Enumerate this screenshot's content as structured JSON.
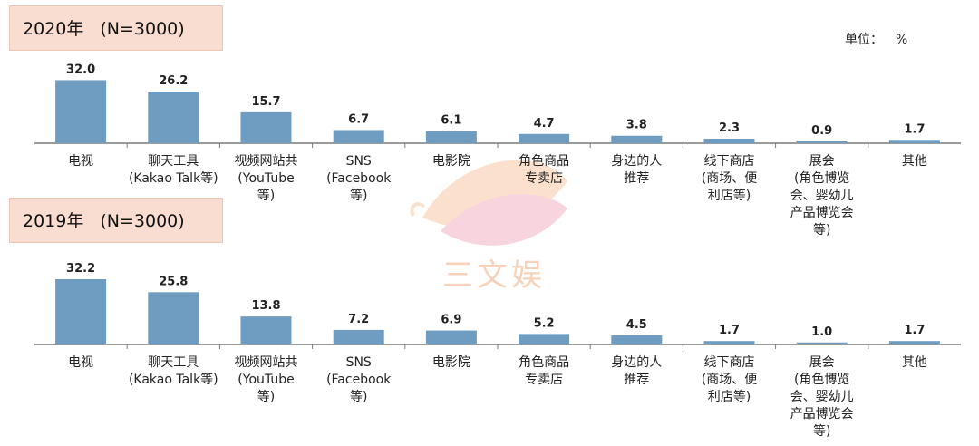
{
  "unit": {
    "label": "单位：",
    "symbol": "%"
  },
  "watermark_text": "三文娱",
  "colors": {
    "bar": "#6f9dc2",
    "axis": "#7a7a7a",
    "tab_bg": "#f9ddd0"
  },
  "chart_data": [
    {
      "type": "bar",
      "title_year": "2020年",
      "title_n": "(N=3000)",
      "categories": [
        [
          "电视"
        ],
        [
          "聊天工具",
          "(Kakao Talk等)"
        ],
        [
          "视频网站共",
          "(YouTube",
          "等)"
        ],
        [
          "SNS",
          "(Facebook",
          "等)"
        ],
        [
          "电影院"
        ],
        [
          "角色商品",
          "专卖店"
        ],
        [
          "身边的人",
          "推荐"
        ],
        [
          "线下商店",
          "(商场、便",
          "利店等)"
        ],
        [
          "展会",
          "(角色博览",
          "会、婴幼儿",
          "产品博览会",
          "等)"
        ],
        [
          "其他"
        ]
      ],
      "values": [
        32.0,
        26.2,
        15.7,
        6.7,
        6.1,
        4.7,
        3.8,
        2.3,
        0.9,
        1.7
      ],
      "value_labels": [
        "32.0",
        "26.2",
        "15.7",
        "6.7",
        "6.1",
        "4.7",
        "3.8",
        "2.3",
        "0.9",
        "1.7"
      ],
      "ylim": [
        0,
        32.2
      ]
    },
    {
      "type": "bar",
      "title_year": "2019年",
      "title_n": "(N=3000)",
      "categories": [
        [
          "电视"
        ],
        [
          "聊天工具",
          "(Kakao Talk等)"
        ],
        [
          "视频网站共",
          "(YouTube",
          "等)"
        ],
        [
          "SNS",
          "(Facebook",
          "等)"
        ],
        [
          "电影院"
        ],
        [
          "角色商品",
          "专卖店"
        ],
        [
          "身边的人",
          "推荐"
        ],
        [
          "线下商店",
          "(商场、便",
          "利店等)"
        ],
        [
          "展会",
          "(角色博览",
          "会、婴幼儿",
          "产品博览会",
          "等)"
        ],
        [
          "其他"
        ]
      ],
      "values": [
        32.2,
        25.8,
        13.8,
        7.2,
        6.9,
        5.2,
        4.5,
        1.7,
        1.0,
        1.7
      ],
      "value_labels": [
        "32.2",
        "25.8",
        "13.8",
        "7.2",
        "6.9",
        "5.2",
        "4.5",
        "1.7",
        "1.0",
        "1.7"
      ],
      "ylim": [
        0,
        32.2
      ]
    }
  ]
}
